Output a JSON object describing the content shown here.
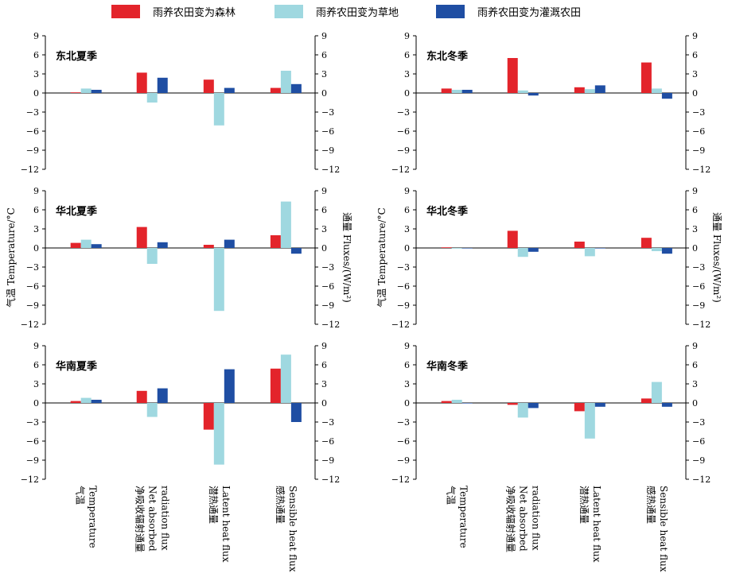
{
  "legend": [
    {
      "label": "雨养农田变为森林",
      "color": "#e3242b"
    },
    {
      "label": "雨养农田变为草地",
      "color": "#9fd8e0"
    },
    {
      "label": "雨养农田变为灌溉农田",
      "color": "#1f4ea3"
    }
  ],
  "axes": {
    "left_label": "气温 Temperature/°C",
    "right_label": "通量 Fluxes/(W/m²)",
    "ticks": [
      "9",
      "6",
      "3",
      "0",
      "−3",
      "−6",
      "−9",
      "−12"
    ]
  },
  "categories": [
    {
      "cn": "气温",
      "en": [
        "Temperature"
      ]
    },
    {
      "cn": "净吸收辐射通量",
      "en": [
        "Net absorbed",
        "radiation flux"
      ]
    },
    {
      "cn": "潜热通量",
      "en": [
        "Latent heat flux"
      ]
    },
    {
      "cn": "感热通量",
      "en": [
        "Sensible heat flux"
      ]
    }
  ],
  "chart_data": [
    {
      "type": "bar",
      "title": "东北夏季",
      "ylim": [
        -12,
        9
      ],
      "categories": [
        "气温 Temperature",
        "净吸收辐射通量 Net absorbed radiation flux",
        "潜热通量 Latent heat flux",
        "感热通量 Sensible heat flux"
      ],
      "series": [
        {
          "name": "雨养农田变为森林",
          "values": [
            0.1,
            3.2,
            2.1,
            0.8
          ]
        },
        {
          "name": "雨养农田变为草地",
          "values": [
            0.7,
            -1.5,
            -5.1,
            3.5
          ]
        },
        {
          "name": "雨养农田变为灌溉农田",
          "values": [
            0.5,
            2.4,
            0.8,
            1.4
          ]
        }
      ]
    },
    {
      "type": "bar",
      "title": "东北冬季",
      "ylim": [
        -12,
        9
      ],
      "categories": [
        "气温 Temperature",
        "净吸收辐射通量 Net absorbed radiation flux",
        "潜热通量 Latent heat flux",
        "感热通量 Sensible heat flux"
      ],
      "series": [
        {
          "name": "雨养农田变为森林",
          "values": [
            0.7,
            5.5,
            0.9,
            4.8
          ]
        },
        {
          "name": "雨养农田变为草地",
          "values": [
            0.5,
            0.4,
            0.6,
            0.7
          ]
        },
        {
          "name": "雨养农田变为灌溉农田",
          "values": [
            0.5,
            -0.4,
            1.2,
            -0.9
          ]
        }
      ]
    },
    {
      "type": "bar",
      "title": "华北夏季",
      "ylim": [
        -12,
        9
      ],
      "categories": [
        "气温 Temperature",
        "净吸收辐射通量 Net absorbed radiation flux",
        "潜热通量 Latent heat flux",
        "感热通量 Sensible heat flux"
      ],
      "series": [
        {
          "name": "雨养农田变为森林",
          "values": [
            0.8,
            3.3,
            0.5,
            2.0
          ]
        },
        {
          "name": "雨养农田变为草地",
          "values": [
            1.3,
            -2.5,
            -9.9,
            7.3
          ]
        },
        {
          "name": "雨养农田变为灌溉农田",
          "values": [
            0.6,
            0.9,
            1.3,
            -0.9
          ]
        }
      ]
    },
    {
      "type": "bar",
      "title": "华北冬季",
      "ylim": [
        -12,
        9
      ],
      "categories": [
        "气温 Temperature",
        "净吸收辐射通量 Net absorbed radiation flux",
        "潜热通量 Latent heat flux",
        "感热通量 Sensible heat flux"
      ],
      "series": [
        {
          "name": "雨养农田变为森林",
          "values": [
            0.1,
            2.7,
            1.0,
            1.6
          ]
        },
        {
          "name": "雨养农田变为草地",
          "values": [
            -0.1,
            -1.4,
            -1.3,
            -0.5
          ]
        },
        {
          "name": "雨养农田变为灌溉农田",
          "values": [
            0.0,
            -0.6,
            0.0,
            -0.9
          ]
        }
      ]
    },
    {
      "type": "bar",
      "title": "华南夏季",
      "ylim": [
        -12,
        9
      ],
      "categories": [
        "气温 Temperature",
        "净吸收辐射通量 Net absorbed radiation flux",
        "潜热通量 Latent heat flux",
        "感热通量 Sensible heat flux"
      ],
      "series": [
        {
          "name": "雨养农田变为森林",
          "values": [
            0.3,
            1.9,
            -4.2,
            5.4
          ]
        },
        {
          "name": "雨养农田变为草地",
          "values": [
            0.8,
            -2.2,
            -9.7,
            7.6
          ]
        },
        {
          "name": "雨养农田变为灌溉农田",
          "values": [
            0.5,
            2.3,
            5.3,
            -3.0
          ]
        }
      ]
    },
    {
      "type": "bar",
      "title": "华南冬季",
      "ylim": [
        -12,
        9
      ],
      "categories": [
        "气温 Temperature",
        "净吸收辐射通量 Net absorbed radiation flux",
        "潜热通量 Latent heat flux",
        "感热通量 Sensible heat flux"
      ],
      "series": [
        {
          "name": "雨养农田变为森林",
          "values": [
            0.3,
            -0.3,
            -1.3,
            0.7
          ]
        },
        {
          "name": "雨养农田变为草地",
          "values": [
            0.5,
            -2.3,
            -5.6,
            3.3
          ]
        },
        {
          "name": "雨养农田变为灌溉农田",
          "values": [
            0.0,
            -0.8,
            -0.6,
            -0.6
          ]
        }
      ]
    }
  ]
}
